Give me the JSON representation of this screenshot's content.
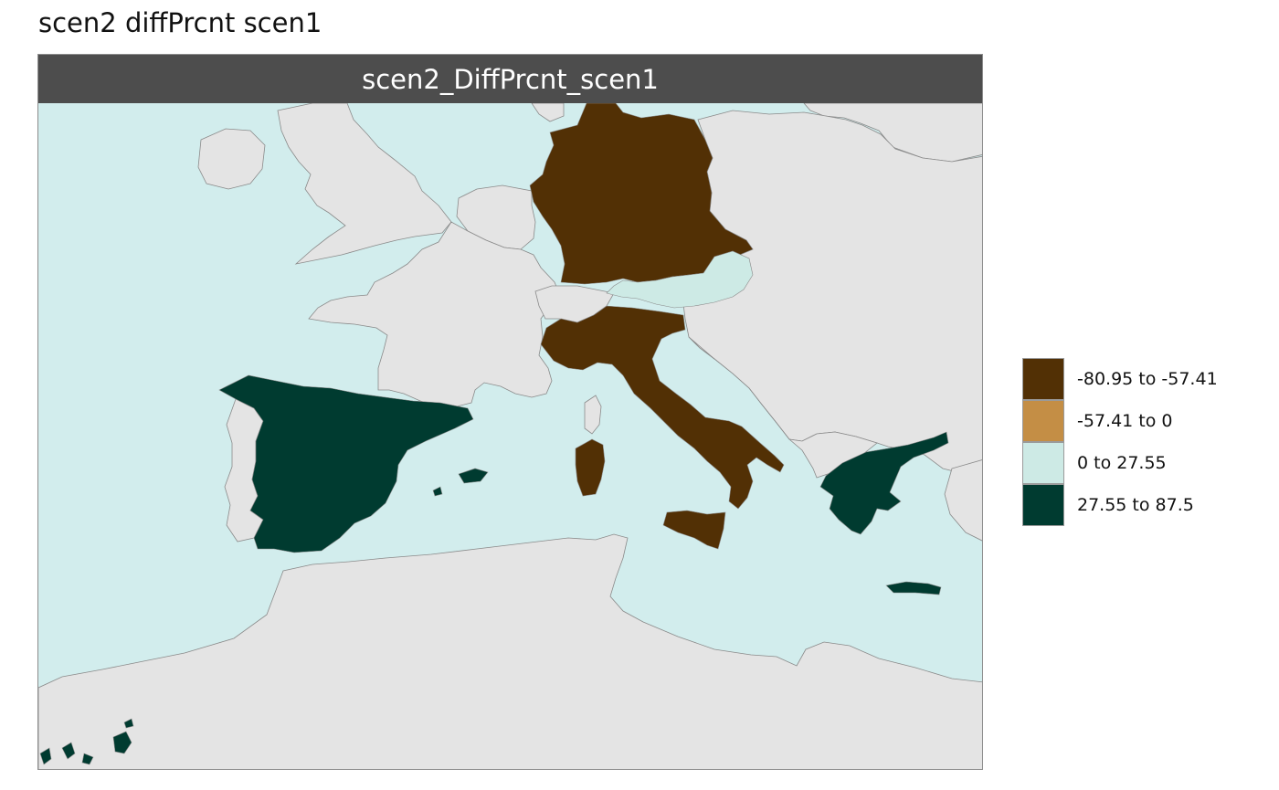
{
  "page_title": "scen2 diffPrcnt scen1",
  "panel_strip": "scen2_DiffPrcnt_scen1",
  "colors": {
    "sea": "#d2eded",
    "land": "#e4e4e4",
    "border": "#8a8a8a",
    "strip_bg": "#4d4d4d"
  },
  "legend": {
    "items": [
      {
        "label": "-80.95 to -57.41",
        "color": "#523005"
      },
      {
        "label": "-57.41 to 0",
        "color": "#c48e45"
      },
      {
        "label": "0 to 27.55",
        "color": "#cdeae5"
      },
      {
        "label": "27.55 to 87.5",
        "color": "#003b30"
      }
    ]
  },
  "regions": [
    {
      "name": "Germany",
      "class": "-80.95 to -57.41"
    },
    {
      "name": "Italy",
      "class": "-80.95 to -57.41"
    },
    {
      "name": "Austria",
      "class": "0 to 27.55"
    },
    {
      "name": "Spain",
      "class": "27.55 to 87.5"
    },
    {
      "name": "Greece",
      "class": "27.55 to 87.5"
    }
  ]
}
